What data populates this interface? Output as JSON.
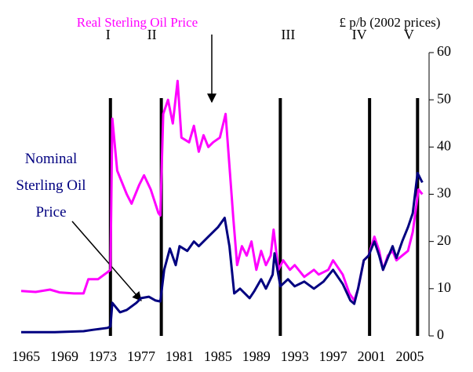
{
  "chart_data": {
    "type": "line",
    "y_label": "£ p/b (2002 prices)",
    "xlim": [
      1964.5,
      2007
    ],
    "xticks": [
      1965,
      1969,
      1973,
      1977,
      1981,
      1985,
      1989,
      1993,
      1997,
      2001,
      2005
    ],
    "ylim": [
      0,
      60
    ],
    "yticks": [
      0,
      10,
      20,
      30,
      40,
      50,
      60
    ],
    "events": [
      {
        "x": 1973.8,
        "label": "I"
      },
      {
        "x": 1979.1,
        "label": "II"
      },
      {
        "x": 1991.5,
        "label": "III"
      },
      {
        "x": 2000.8,
        "label": "IV"
      },
      {
        "x": 2005.8,
        "label": "V"
      }
    ],
    "series": [
      {
        "name": "Real Sterling Oil Price",
        "color": "#ff00ff",
        "x": [
          1964.5,
          1966,
          1967.5,
          1968.5,
          1970,
          1971,
          1971.5,
          1972.5,
          1973.5,
          1973.8,
          1974.0,
          1974.5,
          1975.5,
          1976,
          1976.8,
          1977.3,
          1978,
          1978.8,
          1979.0,
          1979.3,
          1979.8,
          1980.3,
          1980.8,
          1981.2,
          1982,
          1982.5,
          1983,
          1983.5,
          1984,
          1984.5,
          1985.2,
          1985.8,
          1986.2,
          1986.6,
          1987,
          1987.5,
          1988,
          1988.5,
          1989,
          1989.5,
          1990,
          1990.5,
          1990.8,
          1991.3,
          1991.8,
          1992.5,
          1993,
          1994,
          1995,
          1995.5,
          1996.5,
          1997,
          1998,
          1998.7,
          1999.2,
          1999.6,
          2000.2,
          2000.7,
          2001.3,
          2001.8,
          2002.2,
          2002.7,
          2003.2,
          2003.6,
          2004.2,
          2004.8,
          2005.3,
          2005.9,
          2006.3
        ],
        "values": [
          9.5,
          9.3,
          9.8,
          9.2,
          9.0,
          9.0,
          12,
          12,
          13.5,
          14,
          46,
          35,
          30,
          28,
          32,
          34,
          31,
          26,
          25.5,
          47,
          50,
          45,
          54,
          42,
          41,
          44.5,
          39,
          42.5,
          40,
          41,
          42,
          47,
          36,
          25,
          15,
          19,
          17,
          20,
          14,
          18,
          15,
          17,
          22.5,
          14,
          16,
          14,
          15,
          12.5,
          14,
          13,
          14,
          16,
          13,
          9,
          7.5,
          10,
          16,
          17,
          21,
          18,
          14,
          17,
          18,
          16,
          17,
          18,
          22,
          31,
          30
        ]
      },
      {
        "name": "Nominal Sterling Oil Price",
        "color": "#000080",
        "x": [
          1964.5,
          1968,
          1971,
          1972,
          1973.5,
          1973.8,
          1974.0,
          1974.8,
          1975.5,
          1976.5,
          1977,
          1977.8,
          1978.5,
          1979.0,
          1979.4,
          1980,
          1980.6,
          1981,
          1981.8,
          1982.5,
          1983,
          1984,
          1985,
          1985.7,
          1986.2,
          1986.7,
          1987.3,
          1988.3,
          1988.8,
          1989.5,
          1990,
          1990.7,
          1990.9,
          1991.5,
          1992.3,
          1993,
          1994,
          1995,
          1996,
          1997,
          1998,
          1998.8,
          1999.2,
          1999.6,
          2000.2,
          2000.7,
          2001.3,
          2001.8,
          2002.2,
          2002.7,
          2003.2,
          2003.6,
          2004.2,
          2004.8,
          2005.3,
          2005.8,
          2006.3
        ],
        "values": [
          0.8,
          0.8,
          1,
          1.3,
          1.7,
          2,
          7,
          5,
          5.5,
          7,
          8,
          8.3,
          7.5,
          7.3,
          14,
          18.5,
          15,
          19,
          18,
          20,
          19,
          21,
          23,
          25,
          19,
          9,
          10,
          8,
          9.5,
          12,
          10,
          13,
          17.5,
          10.5,
          12,
          10.5,
          11.5,
          10,
          11.5,
          14,
          11,
          7.5,
          6.8,
          10,
          16,
          17,
          20,
          17,
          14,
          16.5,
          19,
          16.5,
          20,
          23,
          26,
          34.5,
          32.5
        ]
      }
    ]
  }
}
